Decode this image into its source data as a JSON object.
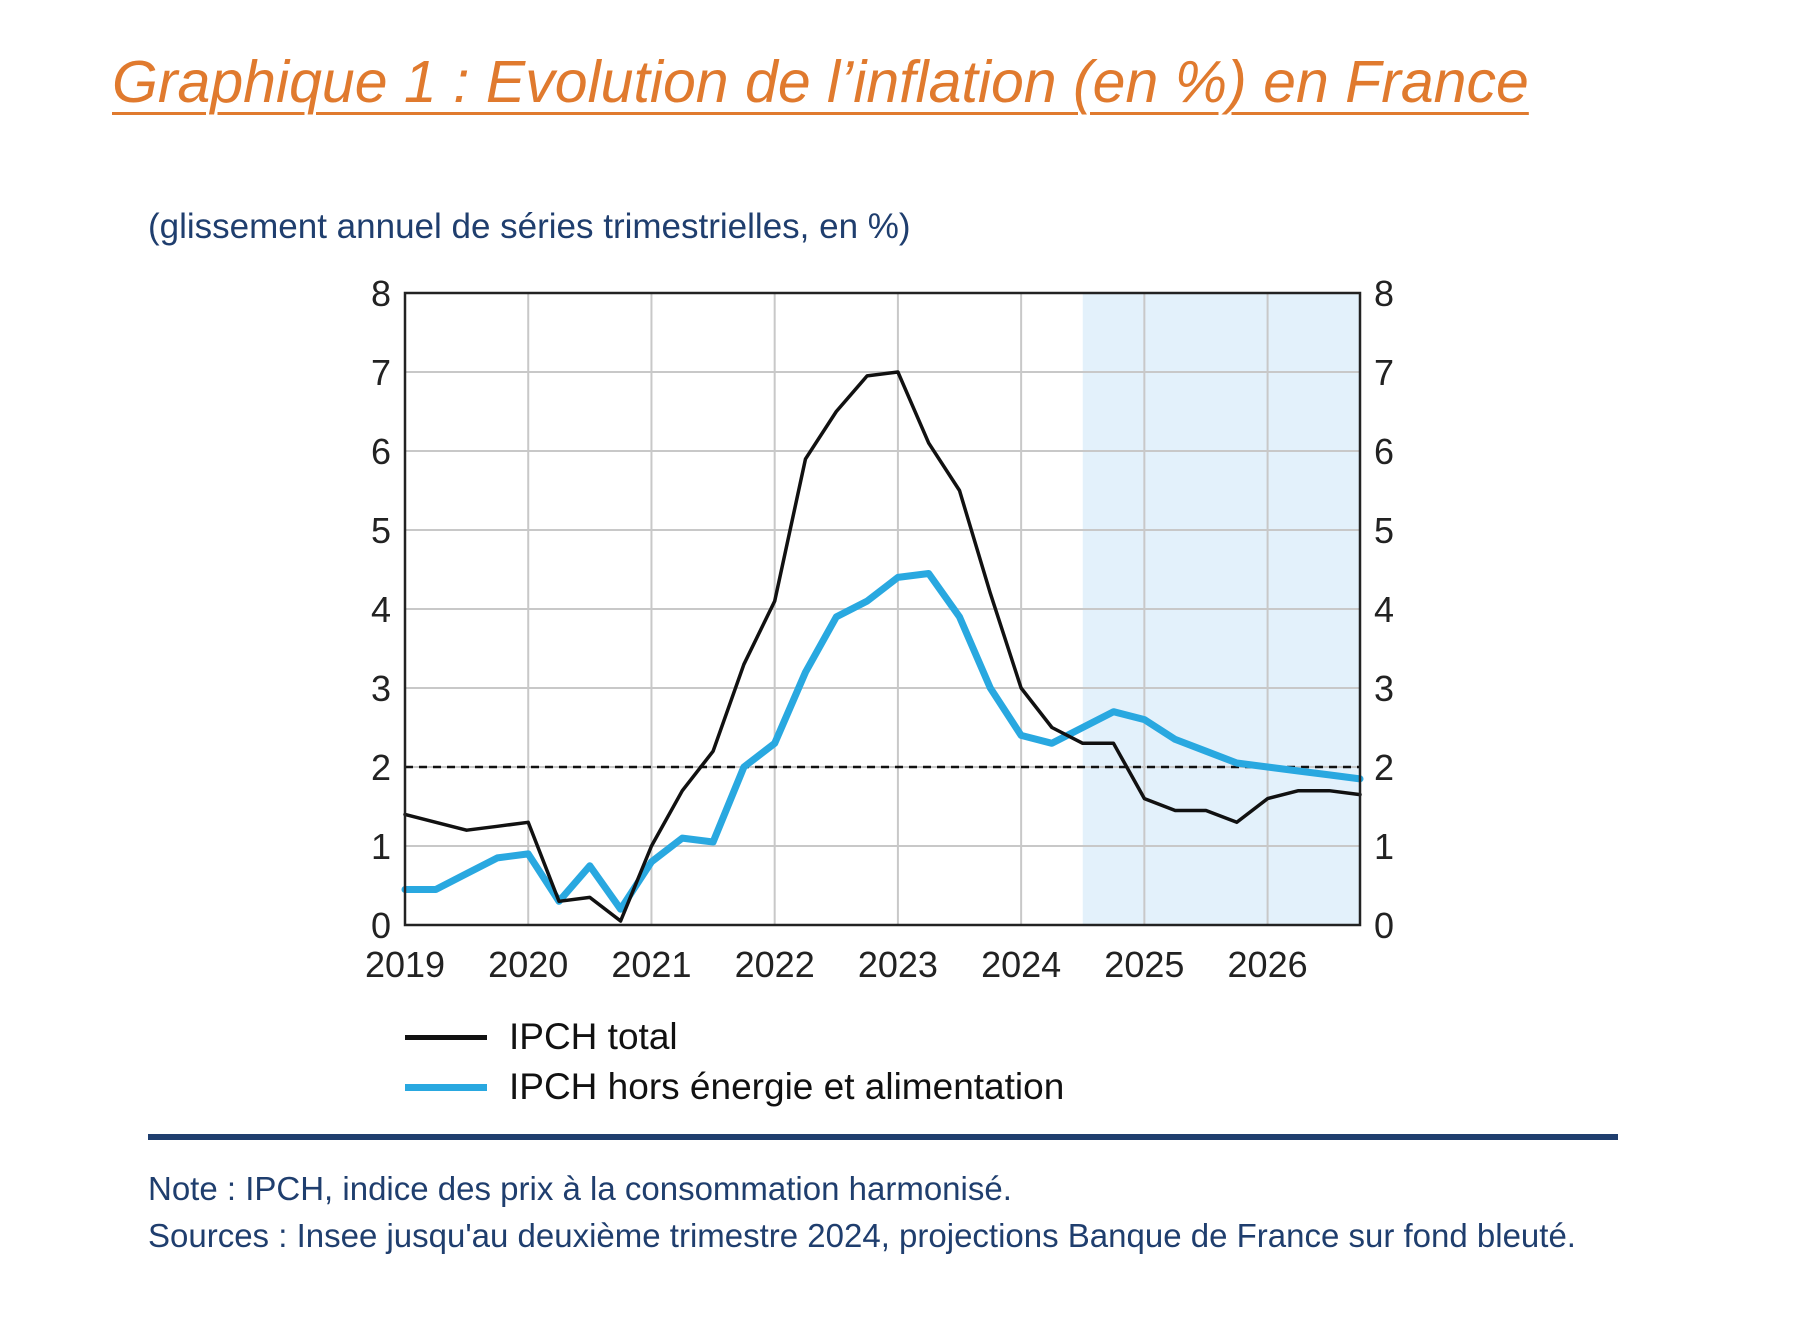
{
  "title": "Graphique 1 : Evolution de l’inflation (en %) en France",
  "subtitle": "(glissement annuel de séries trimestrielles, en %)",
  "colors": {
    "title": "#E07A2E",
    "text_blue": "#1F3E6E",
    "total": "#111111",
    "core": "#29A8E0",
    "projection_bg": "#E3F1FB",
    "grid": "#C8C8C8"
  },
  "legend": [
    {
      "label": "IPCH total"
    },
    {
      "label": "IPCH hors énergie et alimentation"
    }
  ],
  "note": "Note : IPCH, indice des prix à la consommation harmonisé.",
  "sources": "Sources : Insee jusqu'au deuxième trimestre 2024, projections Banque de France sur fond bleuté.",
  "chart_data": {
    "type": "line",
    "x_ticks": [
      "2019",
      "2020",
      "2021",
      "2022",
      "2023",
      "2024",
      "2025",
      "2026"
    ],
    "y_ticks": [
      "0",
      "1",
      "2",
      "3",
      "4",
      "5",
      "6",
      "7",
      "8"
    ],
    "ylim": [
      0,
      8
    ],
    "xlim": [
      "2019-Q1",
      "2026-Q4"
    ],
    "grid": true,
    "secondary_y_axis": true,
    "reference_line": {
      "y": 2,
      "style": "dashed"
    },
    "projection_shading": {
      "from": "2024-Q3",
      "to": "2026-Q4"
    },
    "legend_position": "bottom-left",
    "series": [
      {
        "name": "IPCH total",
        "x": [
          "2019-Q1",
          "2019-Q2",
          "2019-Q3",
          "2019-Q4",
          "2020-Q1",
          "2020-Q2",
          "2020-Q3",
          "2020-Q4",
          "2021-Q1",
          "2021-Q2",
          "2021-Q3",
          "2021-Q4",
          "2022-Q1",
          "2022-Q2",
          "2022-Q3",
          "2022-Q4",
          "2023-Q1",
          "2023-Q2",
          "2023-Q3",
          "2023-Q4",
          "2024-Q1",
          "2024-Q2",
          "2024-Q3",
          "2024-Q4",
          "2025-Q1",
          "2025-Q2",
          "2025-Q3",
          "2025-Q4",
          "2026-Q1",
          "2026-Q2",
          "2026-Q3",
          "2026-Q4"
        ],
        "values": [
          1.4,
          1.3,
          1.2,
          1.25,
          1.3,
          0.3,
          0.35,
          0.05,
          1.0,
          1.7,
          2.2,
          3.3,
          4.1,
          5.9,
          6.5,
          6.95,
          7.0,
          6.1,
          5.5,
          4.2,
          3.0,
          2.5,
          2.3,
          2.3,
          1.6,
          1.45,
          1.45,
          1.3,
          1.6,
          1.7,
          1.7,
          1.65
        ]
      },
      {
        "name": "IPCH hors énergie et alimentation",
        "x": [
          "2019-Q1",
          "2019-Q2",
          "2019-Q3",
          "2019-Q4",
          "2020-Q1",
          "2020-Q2",
          "2020-Q3",
          "2020-Q4",
          "2021-Q1",
          "2021-Q2",
          "2021-Q3",
          "2021-Q4",
          "2022-Q1",
          "2022-Q2",
          "2022-Q3",
          "2022-Q4",
          "2023-Q1",
          "2023-Q2",
          "2023-Q3",
          "2023-Q4",
          "2024-Q1",
          "2024-Q2",
          "2024-Q3",
          "2024-Q4",
          "2025-Q1",
          "2025-Q2",
          "2025-Q3",
          "2025-Q4",
          "2026-Q1",
          "2026-Q2",
          "2026-Q3",
          "2026-Q4"
        ],
        "values": [
          0.45,
          0.45,
          0.65,
          0.85,
          0.9,
          0.3,
          0.75,
          0.2,
          0.8,
          1.1,
          1.05,
          2.0,
          2.3,
          3.2,
          3.9,
          4.1,
          4.4,
          4.45,
          3.9,
          3.0,
          2.4,
          2.3,
          2.5,
          2.7,
          2.6,
          2.35,
          2.2,
          2.05,
          2.0,
          1.95,
          1.9,
          1.85
        ]
      }
    ]
  }
}
